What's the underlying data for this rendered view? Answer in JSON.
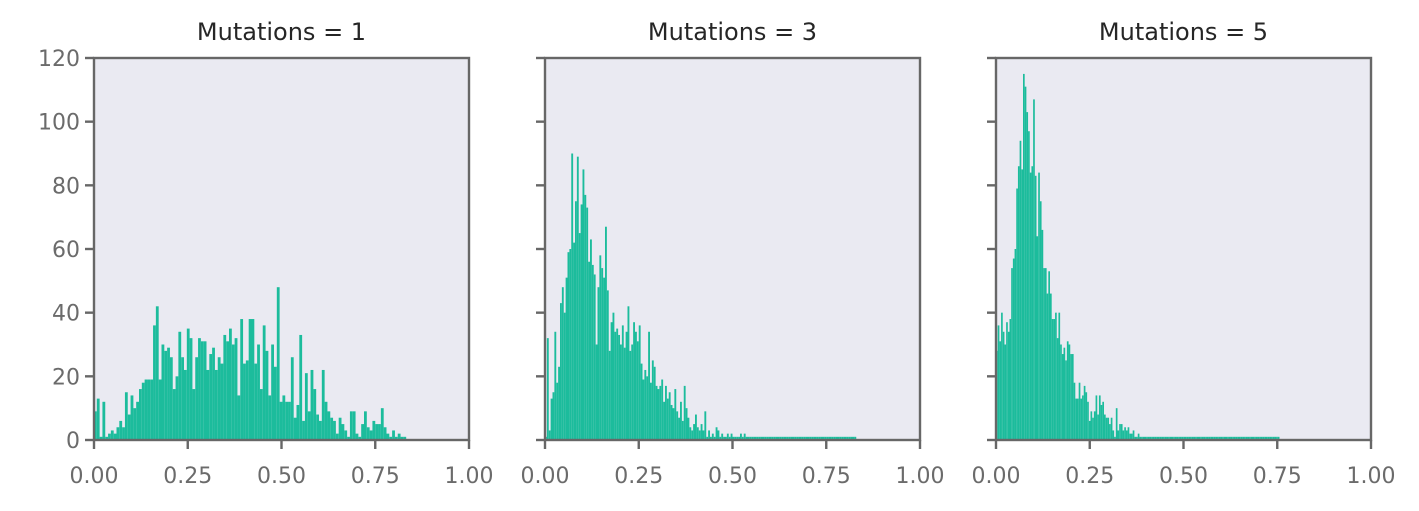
{
  "chart_data": [
    {
      "type": "bar",
      "title": "Mutations = 1",
      "xlim": [
        0,
        1
      ],
      "ylim": [
        0,
        120
      ],
      "xticks": [
        "0.00",
        "0.25",
        "0.50",
        "0.75",
        "1.00"
      ],
      "yticks": [
        "0",
        "20",
        "40",
        "60",
        "80",
        "100",
        "120"
      ],
      "bin_start": 0.0,
      "bin_width": 0.0075,
      "color": "#1cbc9c",
      "values": [
        9,
        13,
        1,
        12,
        1,
        2,
        3,
        2,
        4,
        6,
        4,
        15,
        8,
        14,
        10,
        12,
        16,
        18,
        19,
        19,
        19,
        36,
        42,
        19,
        30,
        28,
        29,
        26,
        16,
        20,
        34,
        26,
        22,
        35,
        32,
        16,
        26,
        32,
        31,
        31,
        22,
        27,
        29,
        22,
        26,
        24,
        33,
        31,
        35,
        30,
        32,
        14,
        38,
        24,
        25,
        38,
        38,
        24,
        30,
        16,
        36,
        28,
        14,
        30,
        23,
        48,
        12,
        14,
        12,
        12,
        26,
        7,
        11,
        33,
        6,
        21,
        9,
        22,
        16,
        8,
        6,
        22,
        12,
        9,
        7,
        6,
        2,
        7,
        5,
        3,
        1,
        9,
        9,
        2,
        1,
        5,
        9,
        4,
        3,
        6,
        5,
        5,
        10,
        4,
        2,
        1,
        3,
        1,
        2,
        1,
        1
      ]
    },
    {
      "type": "bar",
      "title": "Mutations = 3",
      "xlim": [
        0,
        1
      ],
      "ylim": [
        0,
        120
      ],
      "xticks": [
        "0.00",
        "0.25",
        "0.50",
        "0.75",
        "1.00"
      ],
      "yticks": [
        "0",
        "20",
        "40",
        "60",
        "80",
        "100",
        "120"
      ],
      "bin_start": 0.0,
      "bin_width": 0.005,
      "color": "#1cbc9c",
      "values": [
        1,
        32,
        3,
        13,
        15,
        34,
        18,
        23,
        43,
        48,
        40,
        51,
        59,
        60,
        90,
        62,
        75,
        89,
        65,
        74,
        85,
        77,
        73,
        56,
        63,
        55,
        52,
        30,
        48,
        58,
        54,
        51,
        67,
        47,
        28,
        37,
        40,
        34,
        35,
        33,
        30,
        36,
        29,
        34,
        42,
        28,
        30,
        37,
        34,
        31,
        36,
        24,
        19,
        22,
        20,
        34,
        18,
        25,
        23,
        17,
        16,
        17,
        19,
        12,
        17,
        13,
        15,
        11,
        10,
        16,
        9,
        7,
        12,
        6,
        17,
        10,
        7,
        4,
        3,
        5,
        8,
        4,
        3,
        5,
        3,
        9,
        1,
        3,
        1,
        2,
        1,
        4,
        3,
        1,
        2,
        1,
        1,
        2,
        1,
        2,
        1,
        1,
        1,
        1,
        2,
        1,
        2,
        1,
        1,
        1,
        1,
        1,
        1,
        1,
        1,
        1,
        1,
        1,
        1,
        1,
        1,
        1,
        1,
        1,
        1,
        1,
        1,
        1,
        1,
        1,
        1,
        1,
        1,
        1,
        1,
        1,
        1,
        1,
        1,
        1,
        1,
        1,
        1,
        1,
        1,
        1,
        1,
        1,
        1,
        1,
        1,
        1,
        1,
        1,
        1,
        1,
        1,
        1,
        1,
        1,
        1,
        1,
        1,
        1,
        1,
        1
      ]
    },
    {
      "type": "bar",
      "title": "Mutations = 5",
      "xlim": [
        0,
        1
      ],
      "ylim": [
        0,
        120
      ],
      "xticks": [
        "0.00",
        "0.25",
        "0.50",
        "0.75",
        "1.00"
      ],
      "yticks": [
        "0",
        "20",
        "40",
        "60",
        "80",
        "100",
        "120"
      ],
      "bin_start": 0.0,
      "bin_width": 0.0045,
      "color": "#1cbc9c",
      "values": [
        28,
        36,
        31,
        40,
        34,
        30,
        37,
        34,
        38,
        54,
        57,
        60,
        79,
        86,
        94,
        85,
        115,
        111,
        103,
        97,
        84,
        86,
        107,
        83,
        64,
        84,
        75,
        66,
        54,
        54,
        46,
        53,
        46,
        38,
        38,
        40,
        32,
        40,
        30,
        27,
        29,
        25,
        31,
        30,
        27,
        27,
        18,
        13,
        13,
        18,
        13,
        14,
        17,
        15,
        12,
        6,
        9,
        7,
        9,
        14,
        8,
        14,
        11,
        12,
        8,
        7,
        7,
        5,
        7,
        3,
        1,
        10,
        3,
        5,
        5,
        3,
        4,
        3,
        4,
        2,
        2,
        3,
        1,
        1,
        2,
        1,
        1,
        1,
        1,
        1,
        1,
        1,
        1,
        1,
        1,
        1,
        1,
        1,
        1,
        1,
        1,
        1,
        1,
        1,
        1,
        1,
        1,
        1,
        1,
        1,
        1,
        1,
        1,
        1,
        1,
        1,
        1,
        1,
        1,
        1,
        1,
        1,
        1,
        1,
        1,
        1,
        1,
        1,
        1,
        1,
        1,
        1,
        1,
        1,
        1,
        1,
        1,
        1,
        1,
        1,
        1,
        1,
        1,
        1,
        1,
        1,
        1,
        1,
        1,
        1,
        1,
        1,
        1,
        1,
        1,
        1,
        1,
        1,
        1,
        1,
        1,
        1,
        1,
        1,
        1,
        1,
        1,
        1
      ]
    }
  ]
}
